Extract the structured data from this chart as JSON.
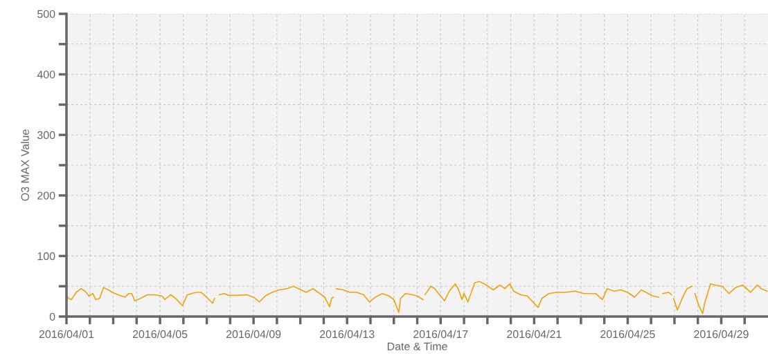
{
  "chart_data": {
    "type": "line",
    "xlabel": "Date & Time",
    "ylabel": "O3 MAX Value",
    "x": [
      "2016-04-01T00:00",
      "2016-04-01T02:00",
      "2016-04-01T05:00",
      "2016-04-01T10:00",
      "2016-04-01T15:00",
      "2016-04-01T19:00",
      "2016-04-01T23:00",
      "2016-04-02T03:00",
      "2016-04-02T06:00",
      "2016-04-02T10:00",
      "2016-04-02T14:00",
      "2016-04-02T19:00",
      "2016-04-02T23:00",
      "2016-04-03T05:00",
      "2016-04-03T12:00",
      "2016-04-03T16:00",
      "2016-04-03T19:00",
      "2016-04-03T22:00",
      "2016-04-04T04:00",
      "2016-04-04T11:00",
      "2016-04-04T18:00",
      "2016-04-05T02:00",
      "2016-04-05T05:00",
      "2016-04-05T11:00",
      "2016-04-05T16:00",
      "2016-04-05T23:00",
      "2016-04-06T04:00",
      "2016-04-06T13:00",
      "2016-04-06T18:00",
      "2016-04-06T21:00",
      "2016-04-07T01:00",
      "2016-04-07T06:00",
      "2016-04-07T08:00",
      "2016-04-07T10:00",
      "2016-04-07T13:00",
      "2016-04-07T18:00",
      "2016-04-07T22:00",
      "2016-04-08T08:00",
      "2016-04-08T17:00",
      "2016-04-09T00:00",
      "2016-04-09T06:00",
      "2016-04-09T12:00",
      "2016-04-09T19:00",
      "2016-04-10T02:00",
      "2016-04-10T10:00",
      "2016-04-10T17:00",
      "2016-04-11T06:00",
      "2016-04-11T13:00",
      "2016-04-11T20:00",
      "2016-04-12T01:00",
      "2016-04-12T06:00",
      "2016-04-12T08:00",
      "2016-04-12T10:00",
      "2016-04-12T11:00",
      "2016-04-12T13:00",
      "2016-04-12T20:00",
      "2016-04-13T03:00",
      "2016-04-13T10:00",
      "2016-04-13T17:00",
      "2016-04-13T23:00",
      "2016-04-14T05:00",
      "2016-04-14T12:00",
      "2016-04-14T19:00",
      "2016-04-15T00:00",
      "2016-04-15T05:00",
      "2016-04-15T07:00",
      "2016-04-15T12:00",
      "2016-04-15T19:00",
      "2016-04-16T00:00",
      "2016-04-16T06:00",
      "2016-04-16T07:00",
      "2016-04-16T08:00",
      "2016-04-16T14:00",
      "2016-04-16T18:00",
      "2016-04-17T04:00",
      "2016-04-17T09:00",
      "2016-04-17T15:00",
      "2016-04-17T18:00",
      "2016-04-17T22:00",
      "2016-04-18T00:00",
      "2016-04-18T04:00",
      "2016-04-18T11:00",
      "2016-04-18T16:00",
      "2016-04-18T23:00",
      "2016-04-19T06:00",
      "2016-04-19T13:00",
      "2016-04-19T18:00",
      "2016-04-19T23:00",
      "2016-04-20T03:00",
      "2016-04-20T10:00",
      "2016-04-20T17:00",
      "2016-04-21T04:00",
      "2016-04-21T08:00",
      "2016-04-21T15:00",
      "2016-04-21T23:00",
      "2016-04-22T08:00",
      "2016-04-22T18:00",
      "2016-04-23T03:00",
      "2016-04-23T15:00",
      "2016-04-23T22:00",
      "2016-04-24T03:00",
      "2016-04-24T10:00",
      "2016-04-24T17:00",
      "2016-04-25T00:00",
      "2016-04-25T07:00",
      "2016-04-25T14:00",
      "2016-04-25T21:00",
      "2016-04-26T02:00",
      "2016-04-26T08:00",
      "2016-04-26T10:00",
      "2016-04-26T12:00",
      "2016-04-26T18:00",
      "2016-04-26T21:00",
      "2016-04-26T22:00",
      "2016-04-26T23:00",
      "2016-04-27T03:00",
      "2016-04-27T09:00",
      "2016-04-27T13:00",
      "2016-04-27T18:00",
      "2016-04-27T19:00",
      "2016-04-27T21:00",
      "2016-04-28T01:00",
      "2016-04-28T05:00",
      "2016-04-28T07:00",
      "2016-04-28T13:00",
      "2016-04-28T18:00",
      "2016-04-29T01:00",
      "2016-04-29T08:00",
      "2016-04-29T15:00",
      "2016-04-29T22:00",
      "2016-04-30T06:00",
      "2016-04-30T13:00",
      "2016-04-30T17:00",
      "2016-04-30T23:00"
    ],
    "series": [
      {
        "color": "#f0a30a",
        "values": [
          36,
          30,
          28,
          40,
          46,
          42,
          34,
          38,
          28,
          30,
          48,
          44,
          40,
          36,
          32,
          38,
          38,
          26,
          30,
          36,
          36,
          34,
          28,
          36,
          30,
          18,
          36,
          40,
          40,
          36,
          30,
          22,
          30,
          null,
          36,
          38,
          35,
          35,
          36,
          32,
          24,
          34,
          40,
          44,
          46,
          50,
          40,
          46,
          38,
          32,
          16,
          30,
          32,
          null,
          46,
          44,
          40,
          40,
          36,
          24,
          32,
          38,
          34,
          28,
          7,
          30,
          38,
          36,
          34,
          28,
          null,
          36,
          50,
          46,
          26,
          42,
          54,
          46,
          28,
          38,
          24,
          56,
          58,
          52,
          44,
          52,
          46,
          54,
          42,
          36,
          34,
          15,
          30,
          38,
          40,
          40,
          42,
          38,
          38,
          28,
          46,
          42,
          44,
          40,
          32,
          44,
          38,
          34,
          32,
          null,
          38,
          40,
          36,
          null,
          30,
          11,
          34,
          46,
          50,
          null,
          38,
          18,
          5,
          22,
          54,
          52,
          50,
          38,
          48,
          52,
          40,
          52,
          46,
          42
        ]
      }
    ],
    "xlim": [
      "2016-04-01T00:00",
      "2016-05-01T00:00"
    ],
    "xticks": [
      {
        "value": "2016-04-01",
        "label": "2016/04/01"
      },
      {
        "value": "2016-04-02",
        "label": null
      },
      {
        "value": "2016-04-03",
        "label": null
      },
      {
        "value": "2016-04-04",
        "label": null
      },
      {
        "value": "2016-04-05",
        "label": "2016/04/05"
      },
      {
        "value": "2016-04-06",
        "label": null
      },
      {
        "value": "2016-04-07",
        "label": null
      },
      {
        "value": "2016-04-08",
        "label": null
      },
      {
        "value": "2016-04-09",
        "label": "2016/04/09"
      },
      {
        "value": "2016-04-10",
        "label": null
      },
      {
        "value": "2016-04-11",
        "label": null
      },
      {
        "value": "2016-04-12",
        "label": null
      },
      {
        "value": "2016-04-13",
        "label": "2016/04/13"
      },
      {
        "value": "2016-04-14",
        "label": null
      },
      {
        "value": "2016-04-15",
        "label": null
      },
      {
        "value": "2016-04-16",
        "label": null
      },
      {
        "value": "2016-04-17",
        "label": "2016/04/17"
      },
      {
        "value": "2016-04-18",
        "label": null
      },
      {
        "value": "2016-04-19",
        "label": null
      },
      {
        "value": "2016-04-20",
        "label": null
      },
      {
        "value": "2016-04-21",
        "label": "2016/04/21"
      },
      {
        "value": "2016-04-22",
        "label": null
      },
      {
        "value": "2016-04-23",
        "label": null
      },
      {
        "value": "2016-04-24",
        "label": null
      },
      {
        "value": "2016-04-25",
        "label": "2016/04/25"
      },
      {
        "value": "2016-04-26",
        "label": null
      },
      {
        "value": "2016-04-27",
        "label": null
      },
      {
        "value": "2016-04-28",
        "label": null
      },
      {
        "value": "2016-04-29",
        "label": "2016/04/29"
      },
      {
        "value": "2016-04-30",
        "label": null
      }
    ],
    "ylim": [
      0,
      500
    ],
    "yticks": [
      0,
      {
        "value": 50,
        "label": null
      },
      100,
      {
        "value": 150,
        "label": null
      },
      200,
      {
        "value": 250,
        "label": null
      },
      300,
      {
        "value": 350,
        "label": null
      },
      400,
      {
        "value": 450,
        "label": null
      },
      500
    ],
    "grid": true
  }
}
